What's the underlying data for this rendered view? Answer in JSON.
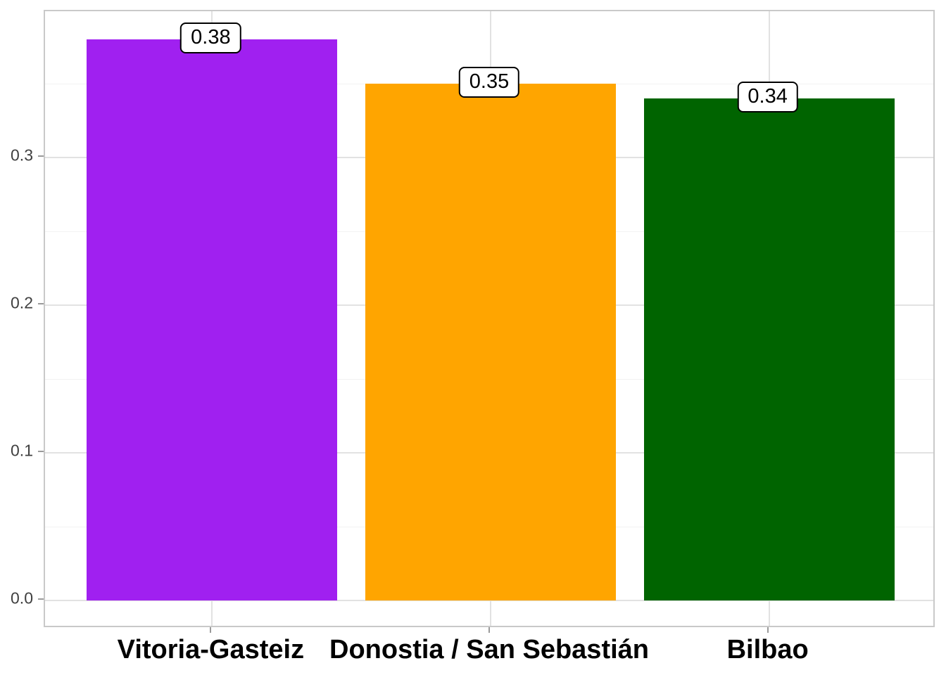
{
  "chart_data": {
    "type": "bar",
    "title": "",
    "xlabel": "",
    "ylabel": "",
    "categories": [
      "Vitoria-Gasteiz",
      "Donostia / San Sebastián",
      "Bilbao"
    ],
    "values": [
      0.38,
      0.35,
      0.34
    ],
    "value_labels": [
      "0.38",
      "0.35",
      "0.34"
    ],
    "bar_colors": [
      "#A020F0",
      "#FFA500",
      "#006400"
    ],
    "ylim": [
      -0.019,
      0.399
    ],
    "y_major_ticks": [
      0,
      0.1,
      0.2,
      0.3
    ],
    "y_tick_labels": [
      "0.0",
      "0.1",
      "0.2",
      "0.3"
    ],
    "y_minor_ticks": [
      0.05,
      0.15,
      0.25,
      0.35
    ],
    "grid": "horizontal major and minor gridlines, vertical major gridlines at category centers",
    "legend": "none",
    "bar_relative_width": 0.9
  },
  "style": {
    "background": "#FFFFFF",
    "panel_border": "#C9C9C9",
    "grid_major": "#E2E2E2",
    "grid_minor": "#F2F2F2",
    "tick_color": "#9A9A9A",
    "y_axis_text_color": "#404040",
    "x_axis_text_color": "#000000",
    "label_box_background": "#FFFFFF",
    "label_box_border": "#000000",
    "label_text_color": "#000000"
  }
}
